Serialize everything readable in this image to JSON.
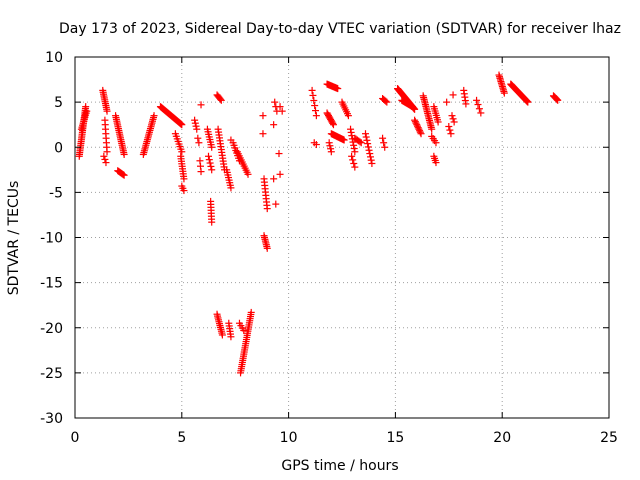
{
  "chart_data": {
    "type": "scatter",
    "title": "Day 173 of 2023, Sidereal Day-to-day VTEC variation (SDTVAR) for receiver lhaz",
    "xlabel": "GPS time / hours",
    "ylabel": "SDTVAR / TECUs",
    "xlim": [
      0,
      25
    ],
    "ylim": [
      -30,
      10
    ],
    "xticks": [
      0,
      5,
      10,
      15,
      20,
      25
    ],
    "yticks": [
      10,
      5,
      0,
      -5,
      -10,
      -15,
      -20,
      -25,
      -30
    ],
    "grid": true,
    "marker": "+",
    "color": "#ff0000",
    "segments": [
      {
        "x0": 0.2,
        "x1": 0.5,
        "y0": -1.0,
        "y1": 4.5,
        "n": 28
      },
      {
        "x0": 0.3,
        "x1": 0.55,
        "y0": 2.0,
        "y1": 4.0,
        "n": 10
      },
      {
        "x0": 1.3,
        "x1": 1.5,
        "y0": 6.3,
        "y1": 4.0,
        "n": 12
      },
      {
        "x0": 1.4,
        "x1": 1.5,
        "y0": 3.0,
        "y1": -0.5,
        "n": 8
      },
      {
        "x0": 1.35,
        "x1": 1.45,
        "y0": -1.0,
        "y1": -1.7,
        "n": 3
      },
      {
        "x0": 1.9,
        "x1": 2.3,
        "y0": 3.5,
        "y1": -0.8,
        "n": 22
      },
      {
        "x0": 2.0,
        "x1": 2.3,
        "y0": -2.6,
        "y1": -3.1,
        "n": 8
      },
      {
        "x0": 3.2,
        "x1": 3.7,
        "y0": -0.8,
        "y1": 3.5,
        "n": 22
      },
      {
        "x0": 4.0,
        "x1": 5.0,
        "y0": 4.5,
        "y1": 2.5,
        "n": 40
      },
      {
        "x0": 4.7,
        "x1": 5.0,
        "y0": 1.5,
        "y1": -0.5,
        "n": 8
      },
      {
        "x0": 4.95,
        "x1": 5.1,
        "y0": -1.0,
        "y1": -3.5,
        "n": 10
      },
      {
        "x0": 5.0,
        "x1": 5.1,
        "y0": -4.3,
        "y1": -4.8,
        "n": 3
      },
      {
        "x0": 5.6,
        "x1": 5.7,
        "y0": 3.0,
        "y1": 2.0,
        "n": 4
      },
      {
        "x0": 5.75,
        "x1": 5.8,
        "y0": 1.0,
        "y1": 0.5,
        "n": 2
      },
      {
        "x0": 5.85,
        "x1": 5.9,
        "y0": -1.5,
        "y1": -2.7,
        "n": 3
      },
      {
        "x0": 5.9,
        "x1": 5.9,
        "y0": 4.7,
        "y1": 4.7,
        "n": 1
      },
      {
        "x0": 6.2,
        "x1": 6.4,
        "y0": 2.0,
        "y1": 0.0,
        "n": 8
      },
      {
        "x0": 6.25,
        "x1": 6.4,
        "y0": -1.0,
        "y1": -2.5,
        "n": 5
      },
      {
        "x0": 6.35,
        "x1": 6.4,
        "y0": -6.0,
        "y1": -8.3,
        "n": 8
      },
      {
        "x0": 6.65,
        "x1": 6.85,
        "y0": 5.8,
        "y1": 5.2,
        "n": 6
      },
      {
        "x0": 6.7,
        "x1": 7.0,
        "y0": 2.0,
        "y1": -2.5,
        "n": 15
      },
      {
        "x0": 6.65,
        "x1": 6.9,
        "y0": -18.5,
        "y1": -20.8,
        "n": 12
      },
      {
        "x0": 7.1,
        "x1": 7.3,
        "y0": -2.5,
        "y1": -4.5,
        "n": 8
      },
      {
        "x0": 7.2,
        "x1": 7.3,
        "y0": -19.5,
        "y1": -21.0,
        "n": 6
      },
      {
        "x0": 7.3,
        "x1": 7.4,
        "y0": 0.8,
        "y1": 0.8,
        "n": 1
      },
      {
        "x0": 7.4,
        "x1": 7.7,
        "y0": 0.5,
        "y1": -1.5,
        "n": 8
      },
      {
        "x0": 7.6,
        "x1": 8.1,
        "y0": -0.5,
        "y1": -3.0,
        "n": 12
      },
      {
        "x0": 7.75,
        "x1": 8.25,
        "y0": -25.0,
        "y1": -18.3,
        "n": 30
      },
      {
        "x0": 7.7,
        "x1": 7.9,
        "y0": -19.5,
        "y1": -20.3,
        "n": 4
      },
      {
        "x0": 8.8,
        "x1": 8.9,
        "y0": 3.5,
        "y1": 3.5,
        "n": 1
      },
      {
        "x0": 8.8,
        "x1": 8.9,
        "y0": 1.5,
        "y1": 1.5,
        "n": 1
      },
      {
        "x0": 8.85,
        "x1": 9.0,
        "y0": -3.5,
        "y1": -6.8,
        "n": 10
      },
      {
        "x0": 8.85,
        "x1": 9.0,
        "y0": -9.8,
        "y1": -11.2,
        "n": 8
      },
      {
        "x0": 9.3,
        "x1": 9.3,
        "y0": 2.5,
        "y1": 2.5,
        "n": 1
      },
      {
        "x0": 9.35,
        "x1": 9.45,
        "y0": 5.0,
        "y1": 4.0,
        "n": 3
      },
      {
        "x0": 9.3,
        "x1": 9.4,
        "y0": -3.5,
        "y1": -3.5,
        "n": 1
      },
      {
        "x0": 9.4,
        "x1": 9.4,
        "y0": -6.3,
        "y1": -6.3,
        "n": 1
      },
      {
        "x0": 9.6,
        "x1": 9.7,
        "y0": 4.5,
        "y1": 4.0,
        "n": 2
      },
      {
        "x0": 9.55,
        "x1": 9.6,
        "y0": -0.7,
        "y1": -0.7,
        "n": 1
      },
      {
        "x0": 9.6,
        "x1": 9.6,
        "y0": -3.0,
        "y1": -3.0,
        "n": 1
      },
      {
        "x0": 11.1,
        "x1": 11.3,
        "y0": 6.3,
        "y1": 3.5,
        "n": 6
      },
      {
        "x0": 11.2,
        "x1": 11.3,
        "y0": 0.5,
        "y1": 0.3,
        "n": 2
      },
      {
        "x0": 11.8,
        "x1": 12.3,
        "y0": 7.0,
        "y1": 6.5,
        "n": 15
      },
      {
        "x0": 11.8,
        "x1": 12.1,
        "y0": 3.8,
        "y1": 2.5,
        "n": 10
      },
      {
        "x0": 11.9,
        "x1": 12.0,
        "y0": 0.5,
        "y1": -0.5,
        "n": 4
      },
      {
        "x0": 12.0,
        "x1": 12.6,
        "y0": 1.5,
        "y1": 0.8,
        "n": 18
      },
      {
        "x0": 12.5,
        "x1": 12.8,
        "y0": 5.0,
        "y1": 3.5,
        "n": 8
      },
      {
        "x0": 12.9,
        "x1": 13.1,
        "y0": 2.0,
        "y1": -0.5,
        "n": 8
      },
      {
        "x0": 12.95,
        "x1": 13.1,
        "y0": -1.0,
        "y1": -2.2,
        "n": 4
      },
      {
        "x0": 13.1,
        "x1": 13.4,
        "y0": 1.0,
        "y1": 0.5,
        "n": 6
      },
      {
        "x0": 13.6,
        "x1": 13.9,
        "y0": 1.5,
        "y1": -1.8,
        "n": 10
      },
      {
        "x0": 14.4,
        "x1": 14.5,
        "y0": 1.0,
        "y1": 0.0,
        "n": 3
      },
      {
        "x0": 14.4,
        "x1": 14.6,
        "y0": 5.4,
        "y1": 5.0,
        "n": 5
      },
      {
        "x0": 15.1,
        "x1": 15.9,
        "y0": 6.5,
        "y1": 4.2,
        "n": 40
      },
      {
        "x0": 15.3,
        "x1": 15.8,
        "y0": 5.2,
        "y1": 4.5,
        "n": 20
      },
      {
        "x0": 16.3,
        "x1": 16.7,
        "y0": 5.7,
        "y1": 2.0,
        "n": 20
      },
      {
        "x0": 15.9,
        "x1": 16.2,
        "y0": 3.0,
        "y1": 1.5,
        "n": 10
      },
      {
        "x0": 16.8,
        "x1": 17.0,
        "y0": 4.5,
        "y1": 2.8,
        "n": 8
      },
      {
        "x0": 16.7,
        "x1": 16.9,
        "y0": 1.2,
        "y1": 0.5,
        "n": 4
      },
      {
        "x0": 16.8,
        "x1": 16.9,
        "y0": -1.0,
        "y1": -1.7,
        "n": 4
      },
      {
        "x0": 17.4,
        "x1": 17.4,
        "y0": 5.0,
        "y1": 5.0,
        "n": 1
      },
      {
        "x0": 17.5,
        "x1": 17.6,
        "y0": 2.3,
        "y1": 1.5,
        "n": 3
      },
      {
        "x0": 17.7,
        "x1": 17.8,
        "y0": 5.8,
        "y1": 5.8,
        "n": 1
      },
      {
        "x0": 17.65,
        "x1": 17.75,
        "y0": 3.5,
        "y1": 2.8,
        "n": 3
      },
      {
        "x0": 18.2,
        "x1": 18.3,
        "y0": 6.3,
        "y1": 4.8,
        "n": 5
      },
      {
        "x0": 18.8,
        "x1": 19.0,
        "y0": 5.2,
        "y1": 3.8,
        "n": 4
      },
      {
        "x0": 19.85,
        "x1": 20.1,
        "y0": 8.0,
        "y1": 6.0,
        "n": 12
      },
      {
        "x0": 20.4,
        "x1": 21.2,
        "y0": 7.0,
        "y1": 5.0,
        "n": 40
      },
      {
        "x0": 22.4,
        "x1": 22.6,
        "y0": 5.7,
        "y1": 5.2,
        "n": 8
      }
    ]
  }
}
